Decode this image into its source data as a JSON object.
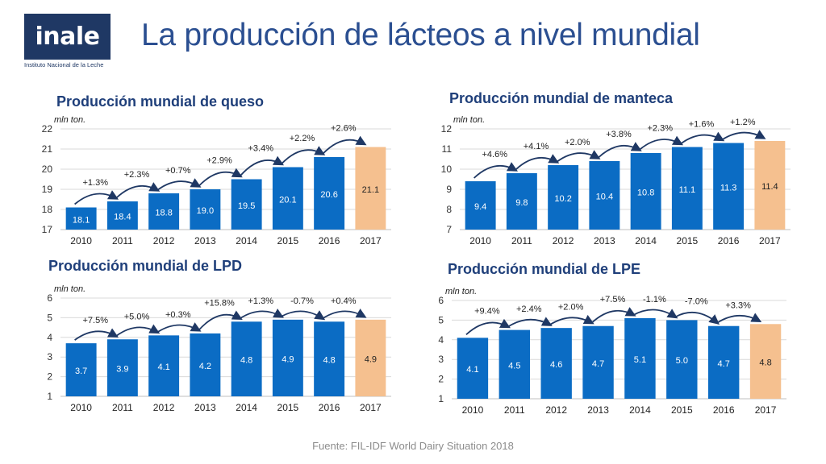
{
  "logo": {
    "text": "inale",
    "subtitle": "Instituto Nacional de la Leche"
  },
  "title": "La producción de lácteos a nivel mundial",
  "footer": "Fuente: FIL-IDF World Dairy Situation 2018",
  "colors": {
    "bar": "#0b6cc4",
    "bar_forecast": "#f5c08f",
    "arrow": "#1f3864",
    "grid": "#d9d9d9"
  },
  "chart_data": [
    {
      "type": "bar",
      "title": "Producción mundial de queso",
      "unit_label": "mln ton.",
      "categories": [
        "2010",
        "2011",
        "2012",
        "2013",
        "2014",
        "2015",
        "2016",
        "2017"
      ],
      "values": [
        18.1,
        18.4,
        18.8,
        19.0,
        19.5,
        20.1,
        20.6,
        21.1
      ],
      "value_labels": [
        "18.1",
        "18.4",
        "18.8",
        "19.0",
        "19.5",
        "20.1",
        "20.6",
        "21.1"
      ],
      "growth_labels": [
        "+1.3%",
        "+2.3%",
        "+0.7%",
        "+2.9%",
        "+3.4%",
        "+2.2%",
        "+2.6%"
      ],
      "yticks": [
        17,
        18,
        19,
        20,
        21,
        22
      ],
      "ylim": [
        17,
        22
      ]
    },
    {
      "type": "bar",
      "title": "Producción  mundial de manteca",
      "unit_label": "mln ton.",
      "categories": [
        "2010",
        "2011",
        "2012",
        "2013",
        "2014",
        "2015",
        "2016",
        "2017"
      ],
      "values": [
        9.4,
        9.8,
        10.2,
        10.4,
        10.8,
        11.1,
        11.3,
        11.4
      ],
      "value_labels": [
        "9.4",
        "9.8",
        "10.2",
        "10.4",
        "10.8",
        "11.1",
        "11.3",
        "11.4"
      ],
      "growth_labels": [
        "+4.6%",
        "+4.1%",
        "+2.0%",
        "+3.8%",
        "+2.3%",
        "+1.6%",
        "+1.2%"
      ],
      "yticks": [
        7,
        8,
        9,
        10,
        11,
        12
      ],
      "ylim": [
        7,
        12
      ]
    },
    {
      "type": "bar",
      "title": "Producción mundial de LPD",
      "unit_label": "mln ton.",
      "categories": [
        "2010",
        "2011",
        "2012",
        "2013",
        "2014",
        "2015",
        "2016",
        "2017"
      ],
      "values": [
        3.7,
        3.9,
        4.1,
        4.2,
        4.8,
        4.9,
        4.8,
        4.9
      ],
      "value_labels": [
        "3.7",
        "3.9",
        "4.1",
        "4.2",
        "4.8",
        "4.9",
        "4.8",
        "4.9"
      ],
      "growth_labels": [
        "+7.5%",
        "+5.0%",
        "+0.3%",
        "+15.8%",
        "+1.3%",
        "-0.7%",
        "+0.4%"
      ],
      "yticks": [
        1,
        2,
        3,
        4,
        5,
        6
      ],
      "ylim": [
        1,
        6
      ]
    },
    {
      "type": "bar",
      "title": "Producción mundial de LPE",
      "unit_label": "mln ton.",
      "categories": [
        "2010",
        "2011",
        "2012",
        "2013",
        "2014",
        "2015",
        "2016",
        "2017"
      ],
      "values": [
        4.1,
        4.5,
        4.6,
        4.7,
        5.1,
        5.0,
        4.7,
        4.8
      ],
      "value_labels": [
        "4.1",
        "4.5",
        "4.6",
        "4.7",
        "5.1",
        "5.0",
        "4.7",
        "4.8"
      ],
      "growth_labels": [
        "+9.4%",
        "+2.4%",
        "+2.0%",
        "+7.5%",
        "-1.1%",
        "-7.0%",
        "+3.3%"
      ],
      "yticks": [
        1,
        2,
        3,
        4,
        5,
        6
      ],
      "ylim": [
        1,
        6
      ]
    }
  ]
}
